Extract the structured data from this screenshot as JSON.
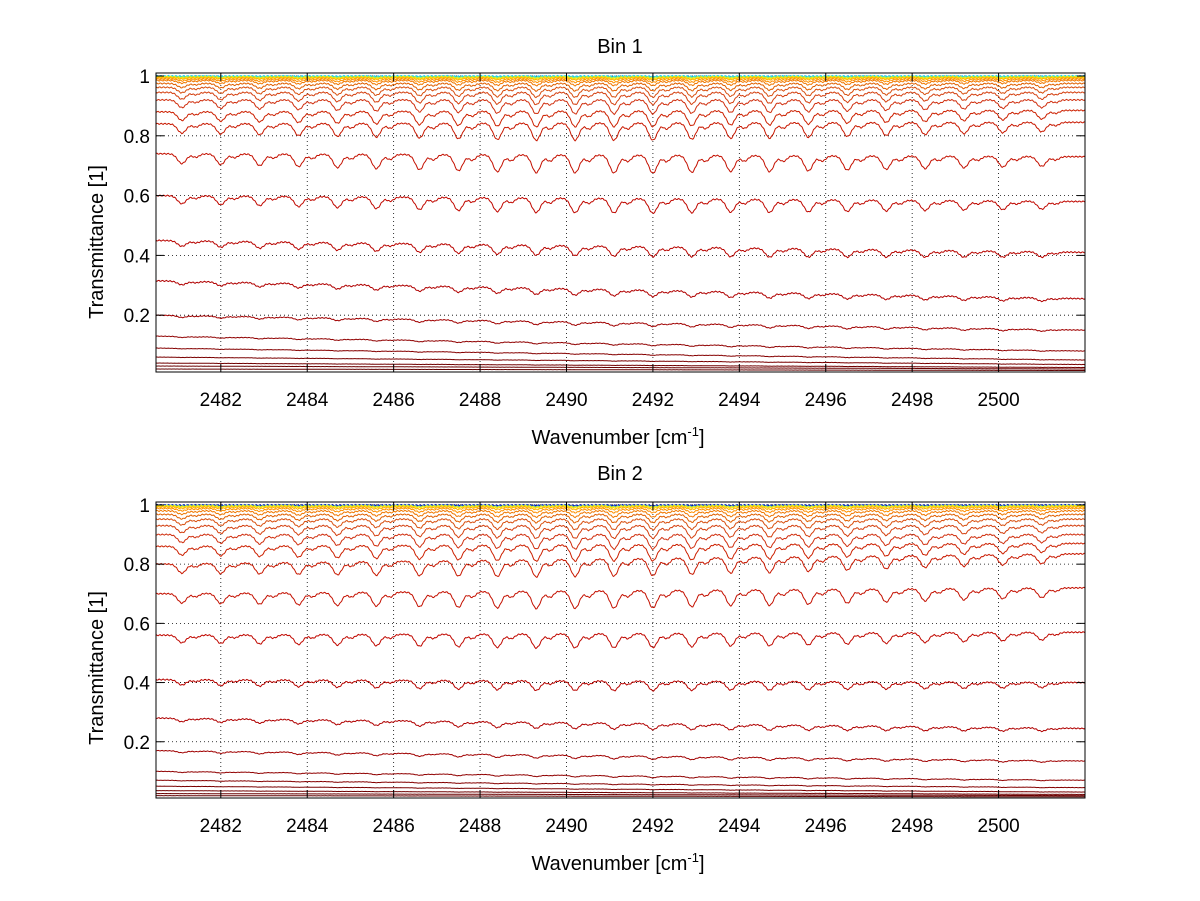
{
  "chart_data": [
    {
      "type": "line",
      "title": "Bin 1",
      "xlabel": "Wavenumber [cm",
      "xlabel_sup": "-1",
      "xlabel_end": "]",
      "ylabel": "Transmittance [1]",
      "xlim": [
        2480.5,
        2502
      ],
      "ylim": [
        0.01,
        1.01
      ],
      "xticks": [
        2482,
        2484,
        2486,
        2488,
        2490,
        2492,
        2494,
        2496,
        2498,
        2500
      ],
      "xtick_labels": [
        "2482",
        "2484",
        "2486",
        "2488",
        "2490",
        "2492",
        "2494",
        "2496",
        "2498",
        "2500"
      ],
      "yticks": [
        0.2,
        0.4,
        0.6,
        0.8,
        1
      ],
      "ytick_labels": [
        "0.2",
        "0.4",
        "0.6",
        "0.8",
        "1"
      ],
      "grid": true,
      "line_positions": [
        2481.1,
        2482.0,
        2482.9,
        2483.8,
        2484.7,
        2485.6,
        2486.6,
        2487.5,
        2488.4,
        2489.3,
        2490.2,
        2491.1,
        2492.0,
        2492.9,
        2493.8,
        2494.7,
        2495.6,
        2496.5,
        2497.4,
        2498.3,
        2499.2,
        2500.1,
        2501.0
      ],
      "line_strengths": [
        0.55,
        0.6,
        0.65,
        0.7,
        0.75,
        0.8,
        0.85,
        0.9,
        0.95,
        1.0,
        1.0,
        1.0,
        1.0,
        0.95,
        0.9,
        0.9,
        0.85,
        0.8,
        0.75,
        0.7,
        0.65,
        0.6,
        0.55
      ],
      "series": [
        {
          "start": 1.0,
          "end": 1.0,
          "depth": 0.001,
          "color": "#00bfff"
        },
        {
          "start": 0.999,
          "end": 0.999,
          "depth": 0.002,
          "color": "#4fe0c0"
        },
        {
          "start": 0.998,
          "end": 0.998,
          "depth": 0.003,
          "color": "#b5f040"
        },
        {
          "start": 0.996,
          "end": 0.996,
          "depth": 0.004,
          "color": "#ffe000"
        },
        {
          "start": 0.994,
          "end": 0.994,
          "depth": 0.005,
          "color": "#ffb000"
        },
        {
          "start": 0.99,
          "end": 0.99,
          "depth": 0.008,
          "color": "#ff9000"
        },
        {
          "start": 0.985,
          "end": 0.985,
          "depth": 0.012,
          "color": "#f07800"
        },
        {
          "start": 0.975,
          "end": 0.975,
          "depth": 0.018,
          "color": "#e06000"
        },
        {
          "start": 0.962,
          "end": 0.962,
          "depth": 0.024,
          "color": "#d85010"
        },
        {
          "start": 0.945,
          "end": 0.945,
          "depth": 0.03,
          "color": "#d44010"
        },
        {
          "start": 0.92,
          "end": 0.92,
          "depth": 0.035,
          "color": "#d03010"
        },
        {
          "start": 0.88,
          "end": 0.885,
          "depth": 0.04,
          "color": "#cc2000"
        },
        {
          "start": 0.84,
          "end": 0.845,
          "depth": 0.045,
          "color": "#c81800"
        },
        {
          "start": 0.74,
          "end": 0.73,
          "depth": 0.05,
          "color": "#c41000"
        },
        {
          "start": 0.6,
          "end": 0.58,
          "depth": 0.045,
          "color": "#c00800"
        },
        {
          "start": 0.45,
          "end": 0.41,
          "depth": 0.035,
          "color": "#b80400"
        },
        {
          "start": 0.315,
          "end": 0.255,
          "depth": 0.025,
          "color": "#b00000"
        },
        {
          "start": 0.2,
          "end": 0.15,
          "depth": 0.015,
          "color": "#a00000"
        },
        {
          "start": 0.13,
          "end": 0.08,
          "depth": 0.008,
          "color": "#900000"
        },
        {
          "start": 0.09,
          "end": 0.05,
          "depth": 0.004,
          "color": "#850000"
        },
        {
          "start": 0.06,
          "end": 0.035,
          "depth": 0.002,
          "color": "#7a0000"
        },
        {
          "start": 0.04,
          "end": 0.025,
          "depth": 0.001,
          "color": "#700000"
        },
        {
          "start": 0.03,
          "end": 0.02,
          "depth": 0.0,
          "color": "#6a0000"
        },
        {
          "start": 0.02,
          "end": 0.015,
          "depth": 0.0,
          "color": "#600000"
        }
      ]
    },
    {
      "type": "line",
      "title": "Bin 2",
      "xlabel": "Wavenumber [cm",
      "xlabel_sup": "-1",
      "xlabel_end": "]",
      "ylabel": "Transmittance [1]",
      "xlim": [
        2480.5,
        2502
      ],
      "ylim": [
        0.01,
        1.01
      ],
      "xticks": [
        2482,
        2484,
        2486,
        2488,
        2490,
        2492,
        2494,
        2496,
        2498,
        2500
      ],
      "xtick_labels": [
        "2482",
        "2484",
        "2486",
        "2488",
        "2490",
        "2492",
        "2494",
        "2496",
        "2498",
        "2500"
      ],
      "yticks": [
        0.2,
        0.4,
        0.6,
        0.8,
        1
      ],
      "ytick_labels": [
        "0.2",
        "0.4",
        "0.6",
        "0.8",
        "1"
      ],
      "grid": true,
      "line_positions": [
        2481.1,
        2482.0,
        2482.9,
        2483.8,
        2484.7,
        2485.6,
        2486.6,
        2487.5,
        2488.4,
        2489.3,
        2490.2,
        2491.1,
        2492.0,
        2492.9,
        2493.8,
        2494.7,
        2495.6,
        2496.5,
        2497.4,
        2498.3,
        2499.2,
        2500.1,
        2501.0
      ],
      "line_strengths": [
        0.55,
        0.6,
        0.65,
        0.7,
        0.75,
        0.8,
        0.85,
        0.9,
        0.95,
        1.0,
        1.0,
        1.0,
        1.0,
        0.95,
        0.9,
        0.9,
        0.85,
        0.8,
        0.75,
        0.7,
        0.65,
        0.6,
        0.55
      ],
      "series": [
        {
          "start": 1.0,
          "end": 1.0,
          "depth": 0.001,
          "color": "#00008b"
        },
        {
          "start": 0.999,
          "end": 0.999,
          "depth": 0.002,
          "color": "#1060ff"
        },
        {
          "start": 0.998,
          "end": 0.998,
          "depth": 0.003,
          "color": "#b5f040"
        },
        {
          "start": 0.996,
          "end": 0.996,
          "depth": 0.004,
          "color": "#ffe000"
        },
        {
          "start": 0.993,
          "end": 0.993,
          "depth": 0.006,
          "color": "#ffb000"
        },
        {
          "start": 0.988,
          "end": 0.988,
          "depth": 0.01,
          "color": "#ff9000"
        },
        {
          "start": 0.98,
          "end": 0.98,
          "depth": 0.015,
          "color": "#f07800"
        },
        {
          "start": 0.968,
          "end": 0.968,
          "depth": 0.02,
          "color": "#e06000"
        },
        {
          "start": 0.952,
          "end": 0.952,
          "depth": 0.026,
          "color": "#d85010"
        },
        {
          "start": 0.93,
          "end": 0.93,
          "depth": 0.032,
          "color": "#d44010"
        },
        {
          "start": 0.9,
          "end": 0.9,
          "depth": 0.037,
          "color": "#d03010"
        },
        {
          "start": 0.86,
          "end": 0.87,
          "depth": 0.042,
          "color": "#cc2000"
        },
        {
          "start": 0.8,
          "end": 0.835,
          "depth": 0.046,
          "color": "#c81800"
        },
        {
          "start": 0.7,
          "end": 0.72,
          "depth": 0.05,
          "color": "#c41000"
        },
        {
          "start": 0.56,
          "end": 0.57,
          "depth": 0.045,
          "color": "#c00800"
        },
        {
          "start": 0.41,
          "end": 0.4,
          "depth": 0.035,
          "color": "#b80400"
        },
        {
          "start": 0.28,
          "end": 0.245,
          "depth": 0.025,
          "color": "#b00000"
        },
        {
          "start": 0.17,
          "end": 0.135,
          "depth": 0.015,
          "color": "#a00000"
        },
        {
          "start": 0.1,
          "end": 0.07,
          "depth": 0.008,
          "color": "#900000"
        },
        {
          "start": 0.07,
          "end": 0.045,
          "depth": 0.004,
          "color": "#850000"
        },
        {
          "start": 0.05,
          "end": 0.03,
          "depth": 0.002,
          "color": "#7a0000"
        },
        {
          "start": 0.035,
          "end": 0.022,
          "depth": 0.001,
          "color": "#700000"
        },
        {
          "start": 0.025,
          "end": 0.018,
          "depth": 0.0,
          "color": "#6a0000"
        },
        {
          "start": 0.018,
          "end": 0.014,
          "depth": 0.0,
          "color": "#600000"
        }
      ]
    }
  ]
}
